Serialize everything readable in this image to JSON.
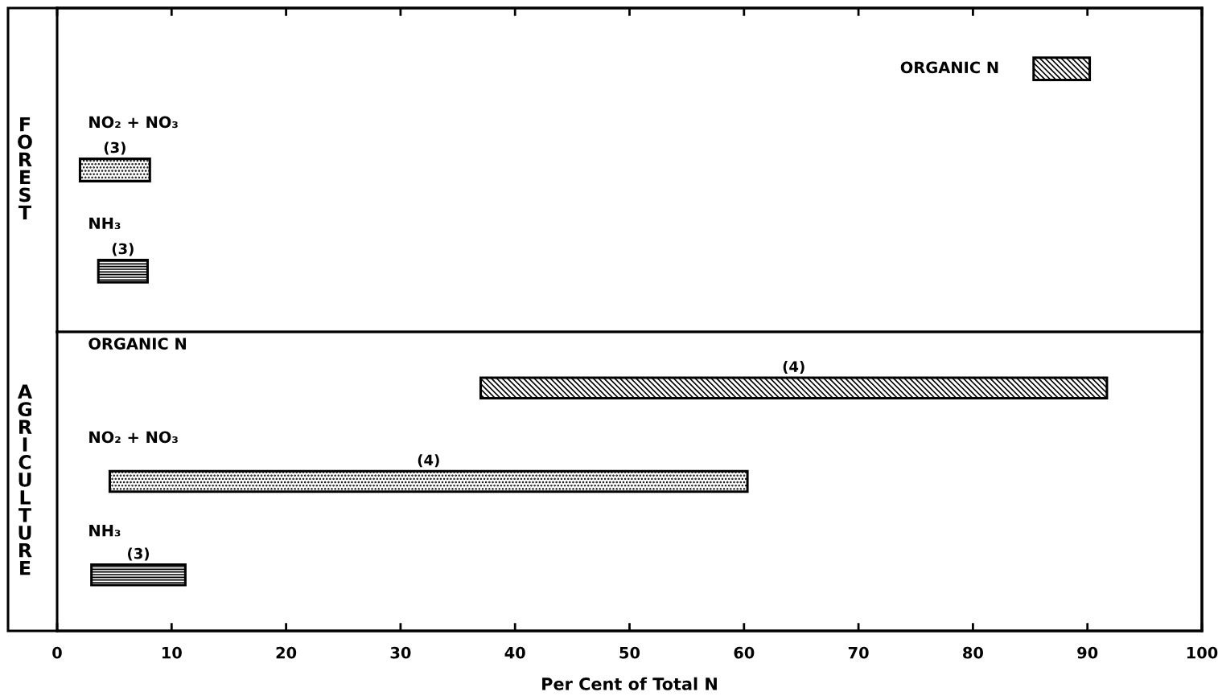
{
  "chart_data": [
    {
      "type": "bar",
      "orientation": "horizontal",
      "ylabel": "FOREST",
      "categories": [
        "ORGANIC N",
        "NO₂ + NO₃",
        "NH₃"
      ],
      "base": [
        85.3,
        2.0,
        3.6
      ],
      "values": [
        4.9,
        6.1,
        4.3
      ],
      "annotations": [
        "(3)",
        "(3)"
      ],
      "colors": [
        "#000000",
        "#000000",
        "#000000"
      ],
      "xlim": [
        0,
        100
      ],
      "xticks": [
        0,
        10,
        20,
        30,
        40,
        50,
        60,
        70,
        80,
        90,
        100
      ],
      "tick_labels": false,
      "grid": false
    },
    {
      "type": "bar",
      "orientation": "horizontal",
      "ylabel": "AGRICULTURE",
      "xlabel": "Per Cent of Total N",
      "categories": [
        "ORGANIC N",
        "NO₂ + NO₃",
        "NH₃"
      ],
      "base": [
        37.0,
        4.6,
        3.0
      ],
      "values": [
        54.7,
        55.7,
        8.2
      ],
      "annotations": [
        "(4)",
        "(4)",
        "(3)"
      ],
      "colors": [
        "#000000",
        "#000000",
        "#000000"
      ],
      "xlim": [
        0,
        100
      ],
      "xticks": [
        0,
        10,
        20,
        30,
        40,
        50,
        60,
        70,
        80,
        90,
        100
      ],
      "grid": false
    }
  ]
}
